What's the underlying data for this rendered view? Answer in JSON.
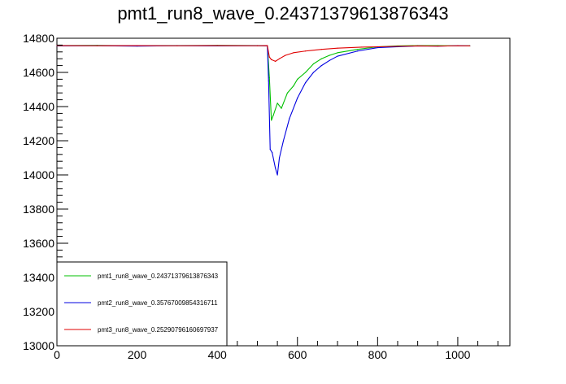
{
  "chart_data": {
    "type": "line",
    "title": "pmt1_run8_wave_0.24371379613876343",
    "xlabel": "",
    "ylabel": "",
    "xlim": [
      0,
      1130
    ],
    "ylim": [
      13000,
      14800
    ],
    "x_ticks": [
      0,
      200,
      400,
      600,
      800,
      1000
    ],
    "y_ticks": [
      13000,
      13200,
      13400,
      13600,
      13800,
      14000,
      14200,
      14400,
      14600,
      14800
    ],
    "x_tick_labels": [
      "0",
      "200",
      "400",
      "600",
      "800",
      "1000"
    ],
    "y_tick_labels": [
      "13000",
      "13200",
      "13400",
      "13600",
      "13800",
      "14000",
      "14200",
      "14400",
      "14600",
      "14800"
    ],
    "grid": false,
    "legend_position": "bottom-left",
    "series": [
      {
        "name": "pmt1_run8_wave_0.24371379613876343",
        "color": "#00c000",
        "x": [
          0,
          100,
          200,
          300,
          400,
          500,
          525,
          530,
          535,
          540,
          550,
          560,
          575,
          590,
          600,
          620,
          640,
          660,
          680,
          700,
          750,
          800,
          850,
          900,
          950,
          1000,
          1030
        ],
        "y": [
          14757,
          14758,
          14756,
          14757,
          14758,
          14757,
          14756,
          14570,
          14320,
          14350,
          14420,
          14390,
          14480,
          14520,
          14560,
          14600,
          14650,
          14680,
          14700,
          14715,
          14735,
          14750,
          14755,
          14757,
          14757,
          14755,
          14756
        ]
      },
      {
        "name": "pmt2_run8_wave_0.35767009854316711",
        "color": "#0000e0",
        "x": [
          0,
          100,
          200,
          300,
          400,
          500,
          525,
          528,
          532,
          537,
          545,
          550,
          555,
          565,
          580,
          600,
          620,
          640,
          660,
          680,
          700,
          750,
          800,
          850,
          900,
          950,
          1000,
          1030
        ],
        "y": [
          14755,
          14756,
          14754,
          14756,
          14755,
          14756,
          14755,
          14550,
          14150,
          14130,
          14040,
          14000,
          14100,
          14200,
          14330,
          14450,
          14540,
          14600,
          14640,
          14670,
          14695,
          14725,
          14745,
          14750,
          14755,
          14754,
          14756,
          14755
        ]
      },
      {
        "name": "pmt3_run8_wave_0.25290796160697937",
        "color": "#e00000",
        "x": [
          0,
          100,
          200,
          300,
          400,
          500,
          525,
          530,
          535,
          545,
          555,
          570,
          590,
          620,
          660,
          700,
          760,
          800,
          850,
          900,
          950,
          1000,
          1030
        ],
        "y": [
          14757,
          14756,
          14757,
          14756,
          14757,
          14756,
          14757,
          14690,
          14675,
          14665,
          14680,
          14700,
          14715,
          14725,
          14735,
          14742,
          14748,
          14750,
          14753,
          14755,
          14754,
          14756,
          14755
        ]
      }
    ]
  }
}
